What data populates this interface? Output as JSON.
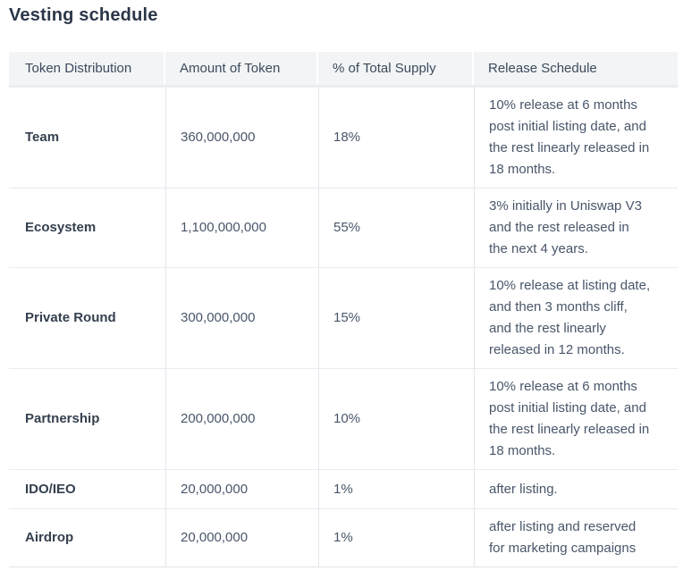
{
  "page": {
    "title": "Vesting schedule"
  },
  "table": {
    "headers": [
      "Token Distribution",
      "Amount of Token",
      "% of Total Supply",
      "Release Schedule"
    ],
    "rows": [
      {
        "distribution": "Team",
        "amount": "360,000,000",
        "percent": "18%",
        "release": "10% release at 6 months post initial listing date, and the rest linearly released in 18 months."
      },
      {
        "distribution": "Ecosystem",
        "amount": "1,100,000,000",
        "percent": "55%",
        "release": "3% initially in Uniswap V3 and the rest released in the next 4 years."
      },
      {
        "distribution": "Private Round",
        "amount": "300,000,000",
        "percent": "15%",
        "release": "10% release at listing date, and then 3 months cliff, and the rest linearly released in 12 months."
      },
      {
        "distribution": "Partnership",
        "amount": "200,000,000",
        "percent": "10%",
        "release": "10% release at 6 months post initial listing date, and the rest linearly released in 18 months."
      },
      {
        "distribution": "IDO/IEO",
        "amount": "20,000,000",
        "percent": "1%",
        "release": "after listing."
      },
      {
        "distribution": "Airdrop",
        "amount": "20,000,000",
        "percent": "1%",
        "release": "after listing and reserved for marketing campaigns"
      }
    ]
  },
  "colors": {
    "title_text": "#2b3648",
    "header_bg": "#f2f4f6",
    "header_text": "#3d4a5c",
    "body_text": "#49566a",
    "bold_text": "#35404f",
    "row_border": "#e7ebef",
    "column_border": "#e2e6ea"
  }
}
